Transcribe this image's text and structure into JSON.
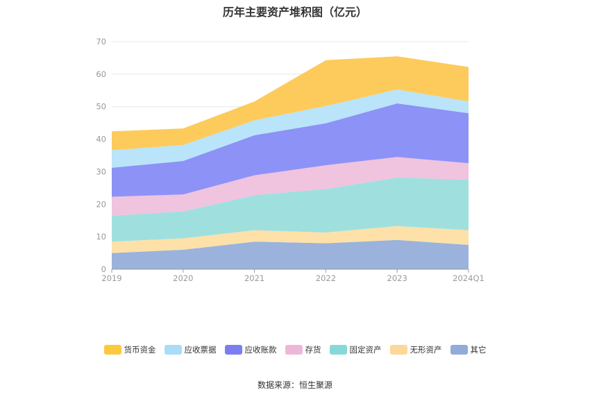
{
  "chart_data": {
    "type": "area",
    "stacked": true,
    "title": "历年主要资产堆积图（亿元）",
    "categories": [
      "2019",
      "2020",
      "2021",
      "2022",
      "2023",
      "2024Q1"
    ],
    "ylim": [
      0,
      70
    ],
    "yticks": [
      0,
      10,
      20,
      30,
      40,
      50,
      60,
      70
    ],
    "grid": true,
    "legend_position": "bottom",
    "series": [
      {
        "name": "其它",
        "color": "#9bb3dc",
        "values": [
          5,
          6,
          8.5,
          8,
          9,
          7.5
        ]
      },
      {
        "name": "无形资产",
        "color": "#fde1a8",
        "values": [
          3.5,
          3.5,
          3.5,
          3.3,
          4.3,
          4.5
        ]
      },
      {
        "name": "固定资产",
        "color": "#9fe0df",
        "values": [
          8,
          8.3,
          10.8,
          13.4,
          14.9,
          15.5
        ]
      },
      {
        "name": "存货",
        "color": "#f0c3df",
        "values": [
          5.8,
          5.2,
          6.1,
          7.3,
          6.3,
          5.1
        ]
      },
      {
        "name": "应收账款",
        "color": "#8d92f6",
        "values": [
          8.9,
          10.3,
          12.3,
          12.9,
          16.5,
          15.4
        ]
      },
      {
        "name": "应收票据",
        "color": "#b9e4fa",
        "values": [
          5.4,
          4.9,
          4.6,
          5.3,
          4.3,
          3.6
        ]
      },
      {
        "name": "货币资金",
        "color": "#fdcb5c",
        "values": [
          5.8,
          5.1,
          5.8,
          14.1,
          10.2,
          10.6
        ]
      }
    ],
    "legend_order": [
      "货币资金",
      "应收票据",
      "应收账款",
      "存货",
      "固定资产",
      "无形资产",
      "其它"
    ],
    "legend_colors": {
      "货币资金": "#fcc93e",
      "应收票据": "#a9ddf7",
      "应收账款": "#7b7ef2",
      "存货": "#edb8d8",
      "固定资产": "#86d9d8",
      "无形资产": "#fdd898",
      "其它": "#92abd9"
    }
  },
  "source_text": "数据来源：恒生聚源"
}
